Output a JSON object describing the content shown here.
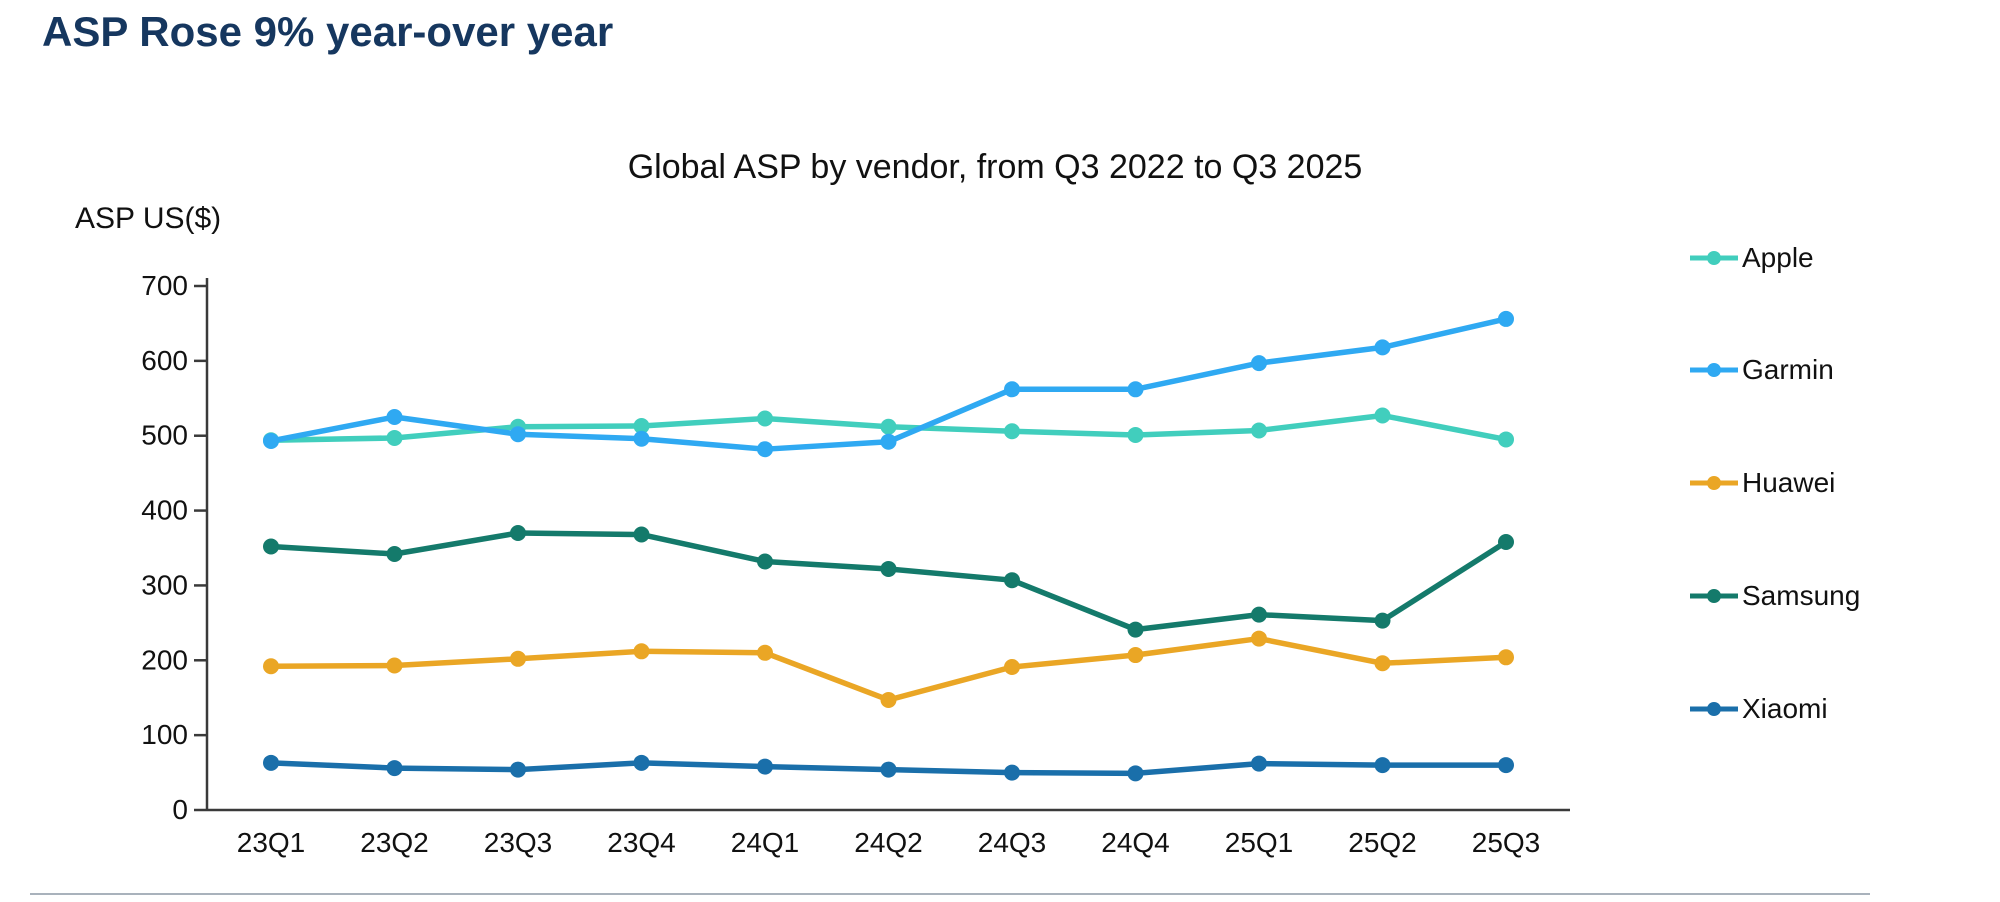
{
  "page": {
    "title": "ASP Rose 9% year-over year"
  },
  "chart_data": {
    "type": "line",
    "title": "Global ASP by vendor, from Q3 2022 to Q3 2025",
    "y_axis_title": "ASP US($)",
    "xlabel": "",
    "ylabel": "ASP US($)",
    "categories": [
      "23Q1",
      "23Q2",
      "23Q3",
      "23Q4",
      "24Q1",
      "24Q2",
      "24Q3",
      "24Q4",
      "25Q1",
      "25Q2",
      "25Q3"
    ],
    "series": [
      {
        "name": "Apple",
        "color": "#41cebd",
        "values": [
          494,
          497,
          512,
          513,
          523,
          512,
          506,
          501,
          507,
          527,
          495
        ]
      },
      {
        "name": "Garmin",
        "color": "#2fa9f2",
        "values": [
          493,
          525,
          502,
          496,
          482,
          492,
          562,
          562,
          597,
          618,
          656
        ]
      },
      {
        "name": "Huawei",
        "color": "#eaa625",
        "values": [
          192,
          193,
          202,
          212,
          210,
          147,
          191,
          207,
          229,
          196,
          204
        ]
      },
      {
        "name": "Samsung",
        "color": "#147a6b",
        "values": [
          352,
          342,
          370,
          368,
          332,
          322,
          307,
          241,
          261,
          253,
          358
        ]
      },
      {
        "name": "Xiaomi",
        "color": "#1a6faa",
        "values": [
          63,
          56,
          54,
          63,
          58,
          54,
          50,
          49,
          62,
          60,
          60
        ]
      }
    ],
    "ylim": [
      0,
      700
    ],
    "y_ticks": [
      0,
      100,
      200,
      300,
      400,
      500,
      600,
      700
    ],
    "grid": false,
    "legend_position": "right",
    "axis_color": "#3a3a3a"
  }
}
